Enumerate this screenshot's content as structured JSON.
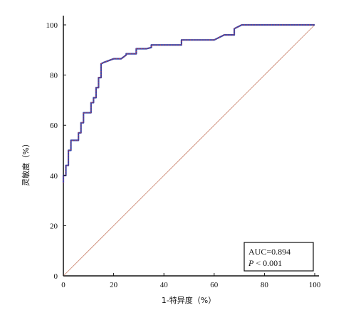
{
  "chart_data": {
    "type": "line",
    "title": "",
    "xlabel": "1-特异度（%）",
    "ylabel": "灵敏度（%）",
    "xlim": [
      0,
      100
    ],
    "ylim": [
      0,
      100
    ],
    "x_ticks": [
      "0",
      "20",
      "40",
      "60",
      "80",
      "100"
    ],
    "y_ticks": [
      "0",
      "20",
      "40",
      "60",
      "80",
      "100"
    ],
    "grid": false,
    "colors": {
      "roc_line": "#3b47a8",
      "roc_dots": "#d23a3a",
      "reference_line": "#c9826b"
    },
    "reference_line": {
      "x": [
        0,
        100
      ],
      "y": [
        0,
        100
      ]
    },
    "series": [
      {
        "x": [
          0,
          0,
          1,
          1,
          2,
          2,
          3,
          3,
          6,
          6,
          7,
          7,
          8,
          8,
          11,
          11,
          12,
          12,
          13,
          13,
          14,
          14,
          15,
          15,
          16,
          20,
          23,
          25,
          25,
          29,
          29,
          33,
          35,
          35,
          47,
          47,
          60,
          64,
          64,
          68,
          68,
          71,
          100
        ],
        "y": [
          37,
          40,
          40,
          44,
          44,
          50,
          50,
          54,
          54,
          57,
          57,
          61,
          61,
          65,
          65,
          69,
          69,
          71,
          71,
          75,
          75,
          79,
          79,
          84.5,
          85,
          86.5,
          86.5,
          88,
          88.5,
          88.5,
          90.5,
          90.5,
          91,
          92,
          92,
          94,
          94,
          96,
          96,
          96,
          98.5,
          100,
          100
        ]
      }
    ],
    "annotation": {
      "line1": "AUC=0.894",
      "line2_italic": "P",
      "line2_rest": " < 0.001"
    }
  }
}
